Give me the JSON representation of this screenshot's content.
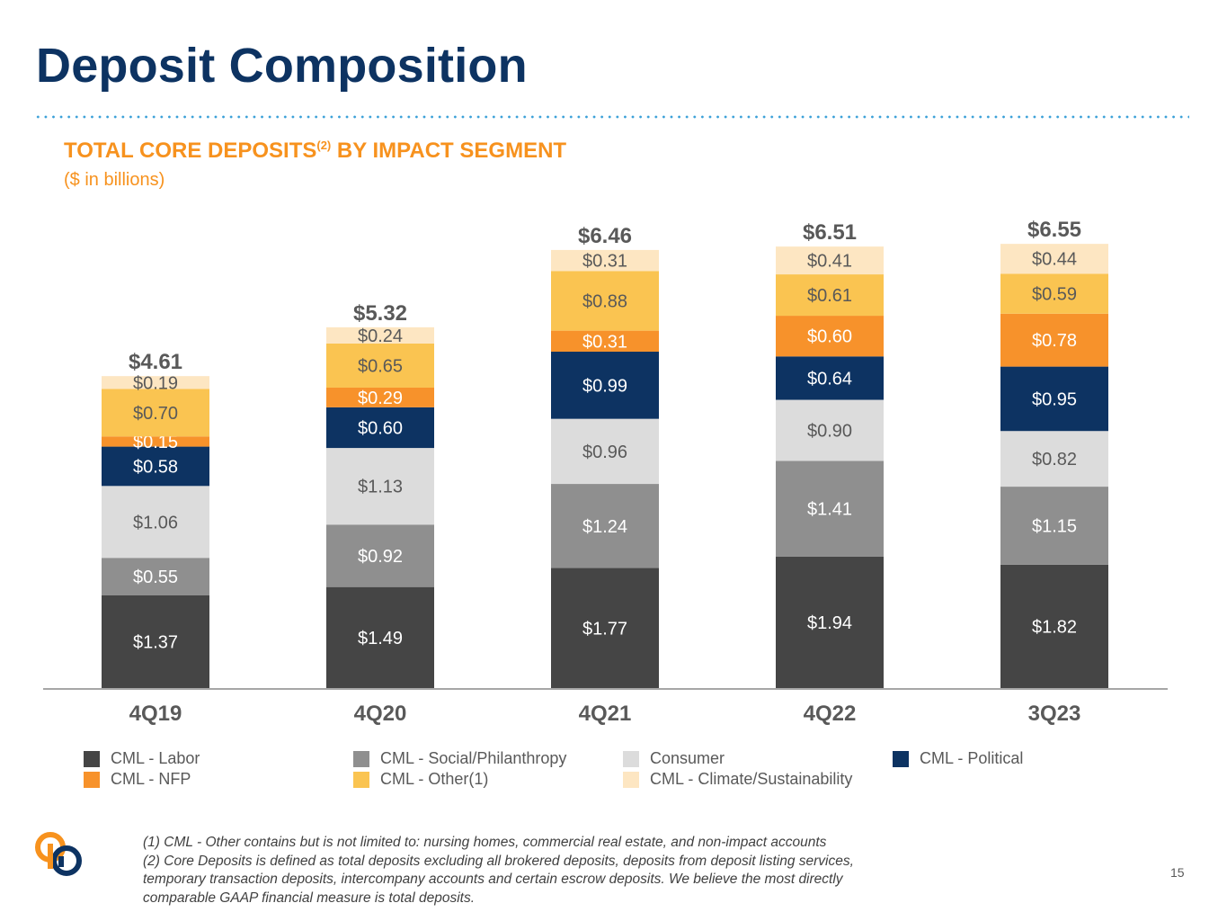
{
  "page": {
    "title": "Deposit Composition",
    "subtitle": "TOTAL CORE DEPOSITS",
    "subtitle_sup": "(2)",
    "subtitle_rest": " BY IMPACT SEGMENT",
    "units": "($ in billions)",
    "page_number": "15",
    "footnotes": [
      "(1) CML - Other contains but is not limited to: nursing homes, commercial real estate, and non-impact accounts",
      "(2) Core Deposits is defined as total deposits excluding all brokered deposits, deposits from deposit listing services, temporary transaction deposits, intercompany accounts and certain escrow deposits. We believe the most directly comparable GAAP financial measure is total deposits."
    ],
    "colors": {
      "title": "#0d3362",
      "accent": "#f7921e",
      "divider_dots": "#3aa0d8"
    },
    "logo_icon": "company-logo-icon"
  },
  "chart_data": {
    "type": "bar",
    "stacked": true,
    "categories": [
      "4Q19",
      "4Q20",
      "4Q21",
      "4Q22",
      "3Q23"
    ],
    "totals": [
      "$4.61",
      "$5.32",
      "$6.46",
      "$6.51",
      "$6.55"
    ],
    "series": [
      {
        "name": "CML - Labor",
        "color": "#454545",
        "label_color": "#ffffff",
        "values": [
          1.37,
          1.49,
          1.77,
          1.94,
          1.82
        ],
        "labels": [
          "$1.37",
          "$1.49",
          "$1.77",
          "$1.94",
          "$1.82"
        ]
      },
      {
        "name": "CML - Social/Philanthropy",
        "color": "#8f8f8f",
        "label_color": "#ffffff",
        "values": [
          0.55,
          0.92,
          1.24,
          1.41,
          1.15
        ],
        "labels": [
          "$0.55",
          "$0.92",
          "$1.24",
          "$1.41",
          "$1.15"
        ]
      },
      {
        "name": "Consumer",
        "color": "#dcdcdc",
        "label_color": "#595959",
        "values": [
          1.06,
          1.13,
          0.96,
          0.9,
          0.82
        ],
        "labels": [
          "$1.06",
          "$1.13",
          "$0.96",
          "$0.90",
          "$0.82"
        ]
      },
      {
        "name": "CML - Political",
        "color": "#0d3362",
        "label_color": "#ffffff",
        "values": [
          0.58,
          0.6,
          0.99,
          0.64,
          0.95
        ],
        "labels": [
          "$0.58",
          "$0.60",
          "$0.99",
          "$0.64",
          "$0.95"
        ]
      },
      {
        "name": "CML - NFP",
        "color": "#f7922b",
        "label_color": "#ffffff",
        "values": [
          0.15,
          0.29,
          0.31,
          0.6,
          0.78
        ],
        "labels": [
          "$0.15",
          "$0.29",
          "$0.31",
          "$0.60",
          "$0.78"
        ]
      },
      {
        "name": "CML - Other(1)",
        "color": "#fac451",
        "label_color": "#595959",
        "values": [
          0.7,
          0.65,
          0.88,
          0.61,
          0.59
        ],
        "labels": [
          "$0.70",
          "$0.65",
          "$0.88",
          "$0.61",
          "$0.59"
        ]
      },
      {
        "name": "CML - Climate/Sustainability",
        "color": "#fde6c2",
        "label_color": "#595959",
        "values": [
          0.19,
          0.24,
          0.31,
          0.41,
          0.44
        ],
        "labels": [
          "$0.19",
          "$0.24",
          "$0.31",
          "$0.41",
          "$0.44"
        ]
      }
    ],
    "legend_order": [
      0,
      1,
      2,
      3,
      4,
      5,
      6
    ],
    "legend_position": "bottom",
    "grid": false,
    "ylim": [
      0,
      6.6
    ]
  }
}
